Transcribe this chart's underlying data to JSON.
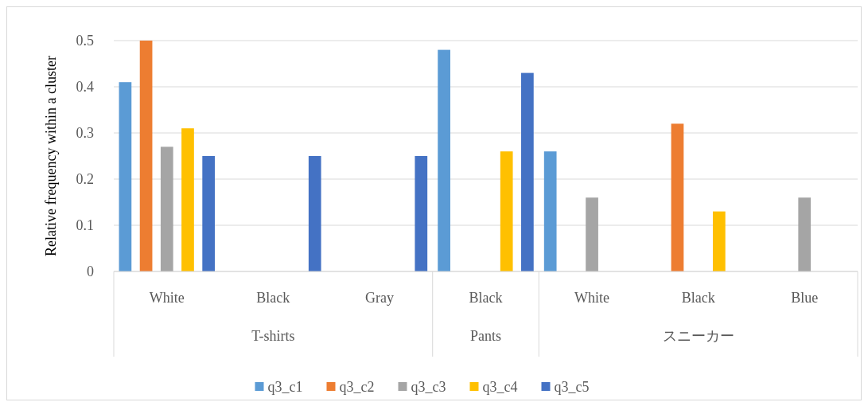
{
  "chart_data": {
    "type": "bar",
    "ylabel": "Relative frequency within a cluster",
    "categories": [
      "White",
      "Black",
      "Gray",
      "Black",
      "White",
      "Black",
      "Blue"
    ],
    "annotations": [
      "T-shirts",
      "Pants",
      "スニーカー"
    ],
    "series": [
      {
        "name": "q3_c1",
        "color": "#5b9bd5",
        "values": [
          0.41,
          0,
          0,
          0.48,
          0.26,
          0,
          0
        ]
      },
      {
        "name": "q3_c2",
        "color": "#ed7d31",
        "values": [
          0.5,
          0,
          0,
          0,
          0,
          0.32,
          0
        ]
      },
      {
        "name": "q3_c3",
        "color": "#a5a5a5",
        "values": [
          0.27,
          0,
          0,
          0,
          0.16,
          0,
          0.16
        ]
      },
      {
        "name": "q3_c4",
        "color": "#ffc000",
        "values": [
          0.31,
          0,
          0,
          0.26,
          0,
          0.13,
          0
        ]
      },
      {
        "name": "q3_c5",
        "color": "#4472c4",
        "values": [
          0.25,
          0.25,
          0.25,
          0.43,
          0,
          0,
          0
        ]
      }
    ],
    "ylim": [
      0,
      0.5
    ],
    "yticks": [
      0,
      0.1,
      0.2,
      0.3,
      0.4,
      0.5
    ],
    "grid": "y",
    "legend": "bottom"
  }
}
